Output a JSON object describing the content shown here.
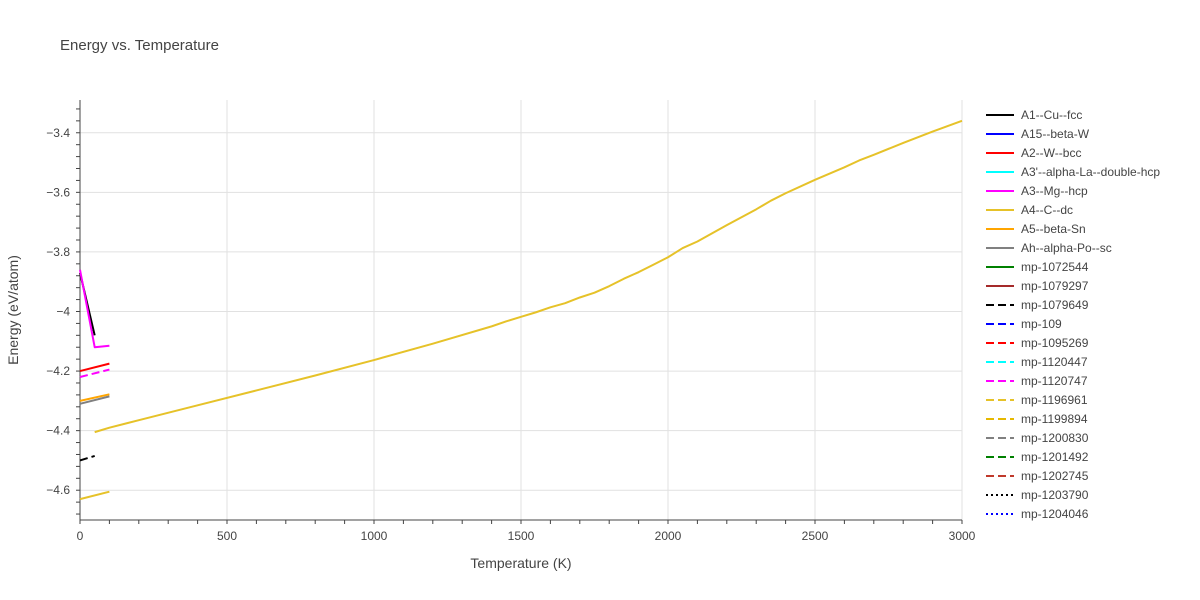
{
  "chart_data": {
    "type": "line",
    "title": "Energy vs. Temperature",
    "xlabel": "Temperature (K)",
    "ylabel": "Energy (eV/atom)",
    "xlim": [
      0,
      3000
    ],
    "ylim": [
      -4.7,
      -3.29
    ],
    "xticks": [
      0,
      500,
      1000,
      1500,
      2000,
      2500,
      3000
    ],
    "xtick_labels": [
      "0",
      "500",
      "1000",
      "1500",
      "2000",
      "2500",
      "3000"
    ],
    "yticks": [
      -4.6,
      -4.4,
      -4.2,
      -4.0,
      -3.8,
      -3.6,
      -3.4
    ],
    "ytick_labels": [
      "−4.6",
      "−4.4",
      "−4.2",
      "−4",
      "−3.8",
      "−3.6",
      "−3.4"
    ],
    "grid": true,
    "legend_position": "right",
    "series": [
      {
        "name": "A1--Cu--fcc",
        "color": "#000000",
        "dash": "solid",
        "x": [
          0,
          50
        ],
        "y": [
          -3.87,
          -4.08
        ]
      },
      {
        "name": "A15--beta-W",
        "color": "#0000ff",
        "dash": "solid",
        "x": [],
        "y": []
      },
      {
        "name": "A2--W--bcc",
        "color": "#ff0000",
        "dash": "solid",
        "x": [
          0,
          100
        ],
        "y": [
          -4.2,
          -4.175
        ]
      },
      {
        "name": "A3'--alpha-La--double-hcp",
        "color": "#00ffff",
        "dash": "solid",
        "x": [],
        "y": []
      },
      {
        "name": "A3--Mg--hcp",
        "color": "#ff00ff",
        "dash": "solid",
        "x": [
          0,
          50,
          100
        ],
        "y": [
          -3.86,
          -4.12,
          -4.115
        ]
      },
      {
        "name": "A4--C--dc",
        "color": "#e6c229",
        "dash": "solid",
        "x": [
          0,
          100
        ],
        "y": [
          -4.63,
          -4.605
        ]
      },
      {
        "name": "A5--beta-Sn",
        "color": "#ffa500",
        "dash": "solid",
        "x": [
          0,
          100
        ],
        "y": [
          -4.3,
          -4.278
        ]
      },
      {
        "name": "Ah--alpha-Po--sc",
        "color": "#808080",
        "dash": "solid",
        "x": [
          0,
          100
        ],
        "y": [
          -4.31,
          -4.285
        ]
      },
      {
        "name": "mp-1072544",
        "color": "#008000",
        "dash": "solid",
        "x": [],
        "y": []
      },
      {
        "name": "mp-1079297",
        "color": "#a52a2a",
        "dash": "solid",
        "x": [],
        "y": []
      },
      {
        "name": "mp-1079649",
        "color": "#000000",
        "dash": "dash",
        "x": [
          0,
          50
        ],
        "y": [
          -4.5,
          -4.485
        ]
      },
      {
        "name": "mp-109",
        "color": "#0000ff",
        "dash": "dash",
        "x": [],
        "y": []
      },
      {
        "name": "mp-1095269",
        "color": "#ff0000",
        "dash": "dash",
        "x": [],
        "y": []
      },
      {
        "name": "mp-1120447",
        "color": "#00ffff",
        "dash": "dash",
        "x": [],
        "y": []
      },
      {
        "name": "mp-1120747",
        "color": "#ff00ff",
        "dash": "dash",
        "x": [
          0,
          100
        ],
        "y": [
          -4.22,
          -4.195
        ]
      },
      {
        "name": "mp-1196961",
        "color": "#e6c229",
        "dash": "dash",
        "x": [],
        "y": []
      },
      {
        "name": "mp-1199894",
        "color": "#e6b800",
        "dash": "dash",
        "x": [],
        "y": []
      },
      {
        "name": "mp-1200830",
        "color": "#808080",
        "dash": "dash",
        "x": [],
        "y": []
      },
      {
        "name": "mp-1201492",
        "color": "#008000",
        "dash": "dash",
        "x": [],
        "y": []
      },
      {
        "name": "mp-1202745",
        "color": "#c0392b",
        "dash": "dash",
        "x": [],
        "y": []
      },
      {
        "name": "mp-1203790",
        "color": "#000000",
        "dash": "dot",
        "x": [],
        "y": []
      },
      {
        "name": "mp-1204046",
        "color": "#0000ff",
        "dash": "dot",
        "x": [],
        "y": []
      },
      {
        "name": "",
        "color": "#e6c229",
        "dash": "solid",
        "legend": false,
        "x": [
          50,
          100,
          200,
          400,
          600,
          800,
          1000,
          1200,
          1400,
          1450,
          1500,
          1550,
          1600,
          1650,
          1700,
          1750,
          1800,
          1850,
          1900,
          1950,
          2000,
          2050,
          2100,
          2200,
          2300,
          2350,
          2400,
          2500,
          2600,
          2650,
          2700,
          2800,
          2900,
          2950,
          3000
        ],
        "y": [
          -4.405,
          -4.39,
          -4.365,
          -4.315,
          -4.265,
          -4.215,
          -4.163,
          -4.108,
          -4.05,
          -4.033,
          -4.018,
          -4.003,
          -3.986,
          -3.972,
          -3.953,
          -3.937,
          -3.915,
          -3.89,
          -3.868,
          -3.843,
          -3.818,
          -3.787,
          -3.765,
          -3.71,
          -3.657,
          -3.628,
          -3.603,
          -3.558,
          -3.516,
          -3.493,
          -3.474,
          -3.434,
          -3.396,
          -3.378,
          -3.36
        ]
      }
    ]
  }
}
